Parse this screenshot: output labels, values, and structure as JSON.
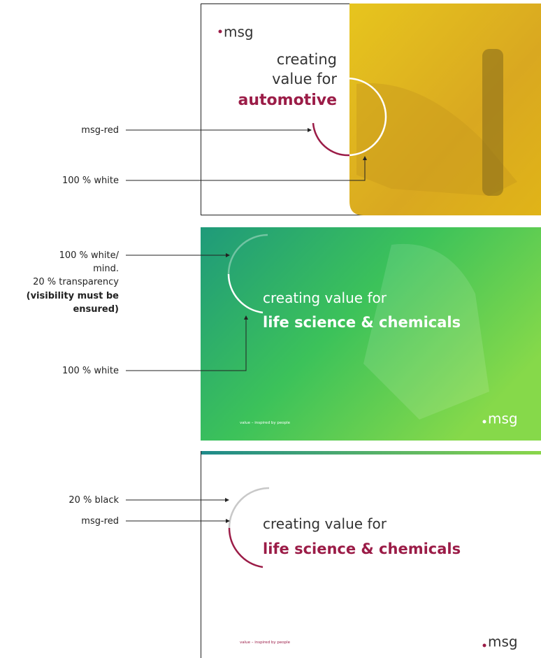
{
  "panels": [
    {
      "logo": "msg",
      "headline": [
        "creating",
        "value for"
      ],
      "highlight": "automotive",
      "annotations": [
        {
          "label": [
            "msg-red"
          ]
        },
        {
          "label": [
            "100 % white"
          ]
        }
      ]
    },
    {
      "logo": "msg",
      "headline": [
        "creating value for"
      ],
      "highlight": "life science & chemicals",
      "tagline": "value – inspired by people",
      "annotations": [
        {
          "label": [
            "100 % white/",
            "mind.",
            "20 % transparency"
          ],
          "bold": [
            "(visibility must be",
            "ensured)"
          ]
        },
        {
          "label": [
            "100 % white"
          ]
        }
      ]
    },
    {
      "logo": "msg",
      "headline": [
        "creating value for"
      ],
      "highlight": "life science & chemicals",
      "tagline": "value – inspired by people",
      "annotations": [
        {
          "label": [
            "20 % black"
          ]
        },
        {
          "label": [
            "msg-red"
          ]
        }
      ]
    }
  ]
}
